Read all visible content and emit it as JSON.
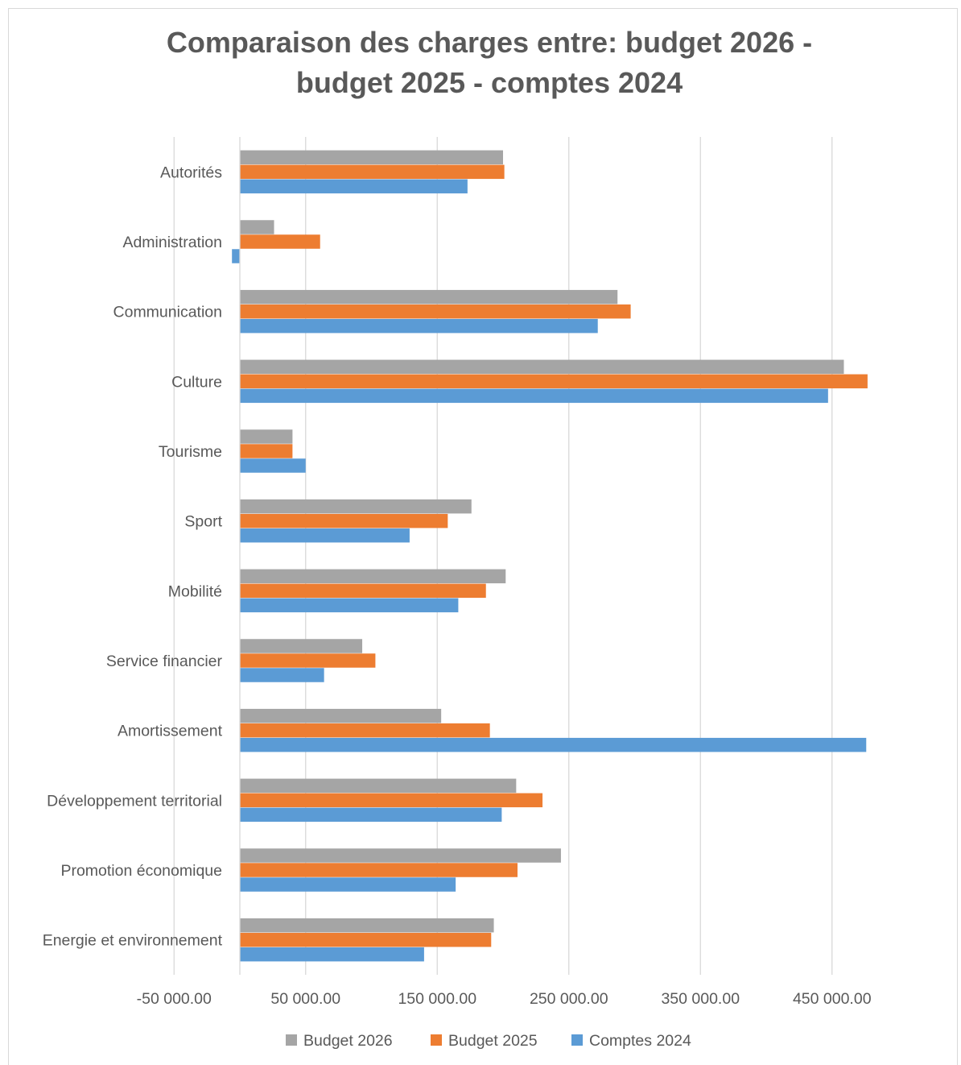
{
  "chart_data": {
    "type": "bar",
    "orientation": "horizontal",
    "title_lines": [
      "Comparaison des charges entre: budget 2026 -",
      "budget 2025 - comptes 2024"
    ],
    "xlabel": "",
    "ylabel": "",
    "xlim": [
      -50000,
      500000
    ],
    "tick_values": [
      -50000,
      50000,
      150000,
      250000,
      350000,
      450000
    ],
    "tick_labels": [
      "-50 000.00",
      "50 000.00",
      "150 000.00",
      "250 000.00",
      "350 000.00",
      "450 000.00"
    ],
    "grid": true,
    "legend_position": "bottom",
    "categories": [
      "Autorités",
      "Administration",
      "Communication",
      "Culture",
      "Tourisme",
      "Sport",
      "Mobilité",
      "Service financier",
      "Amortissement",
      "Développement territorial",
      "Promotion économique",
      "Energie et environnement"
    ],
    "series": [
      {
        "name": "Budget 2026",
        "color": "#a5a5a5",
        "values": [
          200000,
          26000,
          287000,
          459000,
          40000,
          176000,
          202000,
          93000,
          153000,
          210000,
          244000,
          193000
        ]
      },
      {
        "name": "Budget 2025",
        "color": "#ed7d31",
        "values": [
          201000,
          61000,
          297000,
          477000,
          40000,
          158000,
          187000,
          103000,
          190000,
          230000,
          211000,
          191000
        ]
      },
      {
        "name": "Comptes 2024",
        "color": "#5b9bd5",
        "values": [
          173000,
          -6000,
          272000,
          447000,
          50000,
          129000,
          166000,
          64000,
          476000,
          199000,
          164000,
          140000
        ]
      }
    ]
  }
}
